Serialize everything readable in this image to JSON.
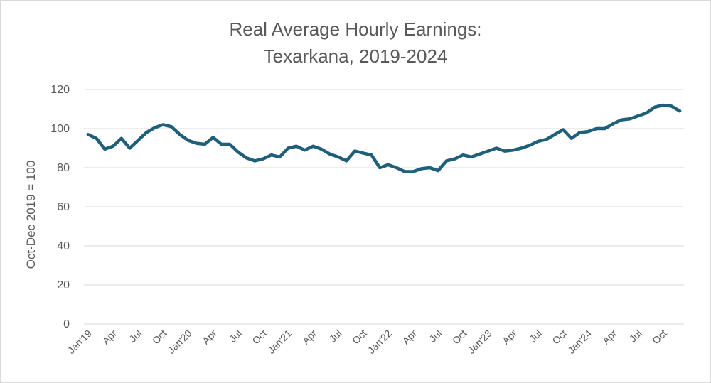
{
  "chart_data": {
    "type": "line",
    "title_line1": "Real Average Hourly Earnings:",
    "title_line2": "Texarkana, 2019-2024",
    "xlabel": "",
    "ylabel": "Oct-Dec 2019 = 100",
    "ylim": [
      0,
      120
    ],
    "yticks": [
      0,
      20,
      40,
      60,
      80,
      100,
      120
    ],
    "grid": true,
    "legend": "none",
    "line_color": "#1f5f7a",
    "xtick_labels": [
      "Jan'19",
      "Apr",
      "Jul",
      "Oct",
      "Jan'20",
      "Apr",
      "Jul",
      "Oct",
      "Jan'21",
      "Apr",
      "Jul",
      "Oct",
      "Jan'22",
      "Apr",
      "Jul",
      "Oct",
      "Jan'23",
      "Apr",
      "Jul",
      "Oct",
      "Jan'24",
      "Apr",
      "Jul",
      "Oct"
    ],
    "x": [
      "2019-01",
      "2019-02",
      "2019-03",
      "2019-04",
      "2019-05",
      "2019-06",
      "2019-07",
      "2019-08",
      "2019-09",
      "2019-10",
      "2019-11",
      "2019-12",
      "2020-01",
      "2020-02",
      "2020-03",
      "2020-04",
      "2020-05",
      "2020-06",
      "2020-07",
      "2020-08",
      "2020-09",
      "2020-10",
      "2020-11",
      "2020-12",
      "2021-01",
      "2021-02",
      "2021-03",
      "2021-04",
      "2021-05",
      "2021-06",
      "2021-07",
      "2021-08",
      "2021-09",
      "2021-10",
      "2021-11",
      "2021-12",
      "2022-01",
      "2022-02",
      "2022-03",
      "2022-04",
      "2022-05",
      "2022-06",
      "2022-07",
      "2022-08",
      "2022-09",
      "2022-10",
      "2022-11",
      "2022-12",
      "2023-01",
      "2023-02",
      "2023-03",
      "2023-04",
      "2023-05",
      "2023-06",
      "2023-07",
      "2023-08",
      "2023-09",
      "2023-10",
      "2023-11",
      "2023-12",
      "2024-01",
      "2024-02",
      "2024-03",
      "2024-04",
      "2024-05",
      "2024-06",
      "2024-07",
      "2024-08",
      "2024-09",
      "2024-10",
      "2024-11",
      "2024-12"
    ],
    "series": [
      {
        "values": [
          97,
          95,
          89.5,
          91,
          95,
          90,
          94,
          98,
          100.5,
          102,
          101,
          97,
          94,
          92.5,
          92,
          95.5,
          92,
          92,
          88,
          85,
          83.5,
          84.5,
          86.5,
          85.5,
          90,
          91,
          89,
          91,
          89.5,
          87,
          85.5,
          83.5,
          88.5,
          87.5,
          86.5,
          80,
          81.5,
          80,
          78,
          78,
          79.5,
          80,
          78.5,
          83.5,
          84.5,
          86.5,
          85.5,
          87,
          88.5,
          90,
          88.5,
          89,
          90,
          91.5,
          93.5,
          94.5,
          97,
          99.5,
          95,
          98,
          98.5,
          100,
          100,
          102.5,
          104.5,
          105,
          106.5,
          108,
          111,
          112,
          111.5,
          109
        ]
      }
    ]
  }
}
